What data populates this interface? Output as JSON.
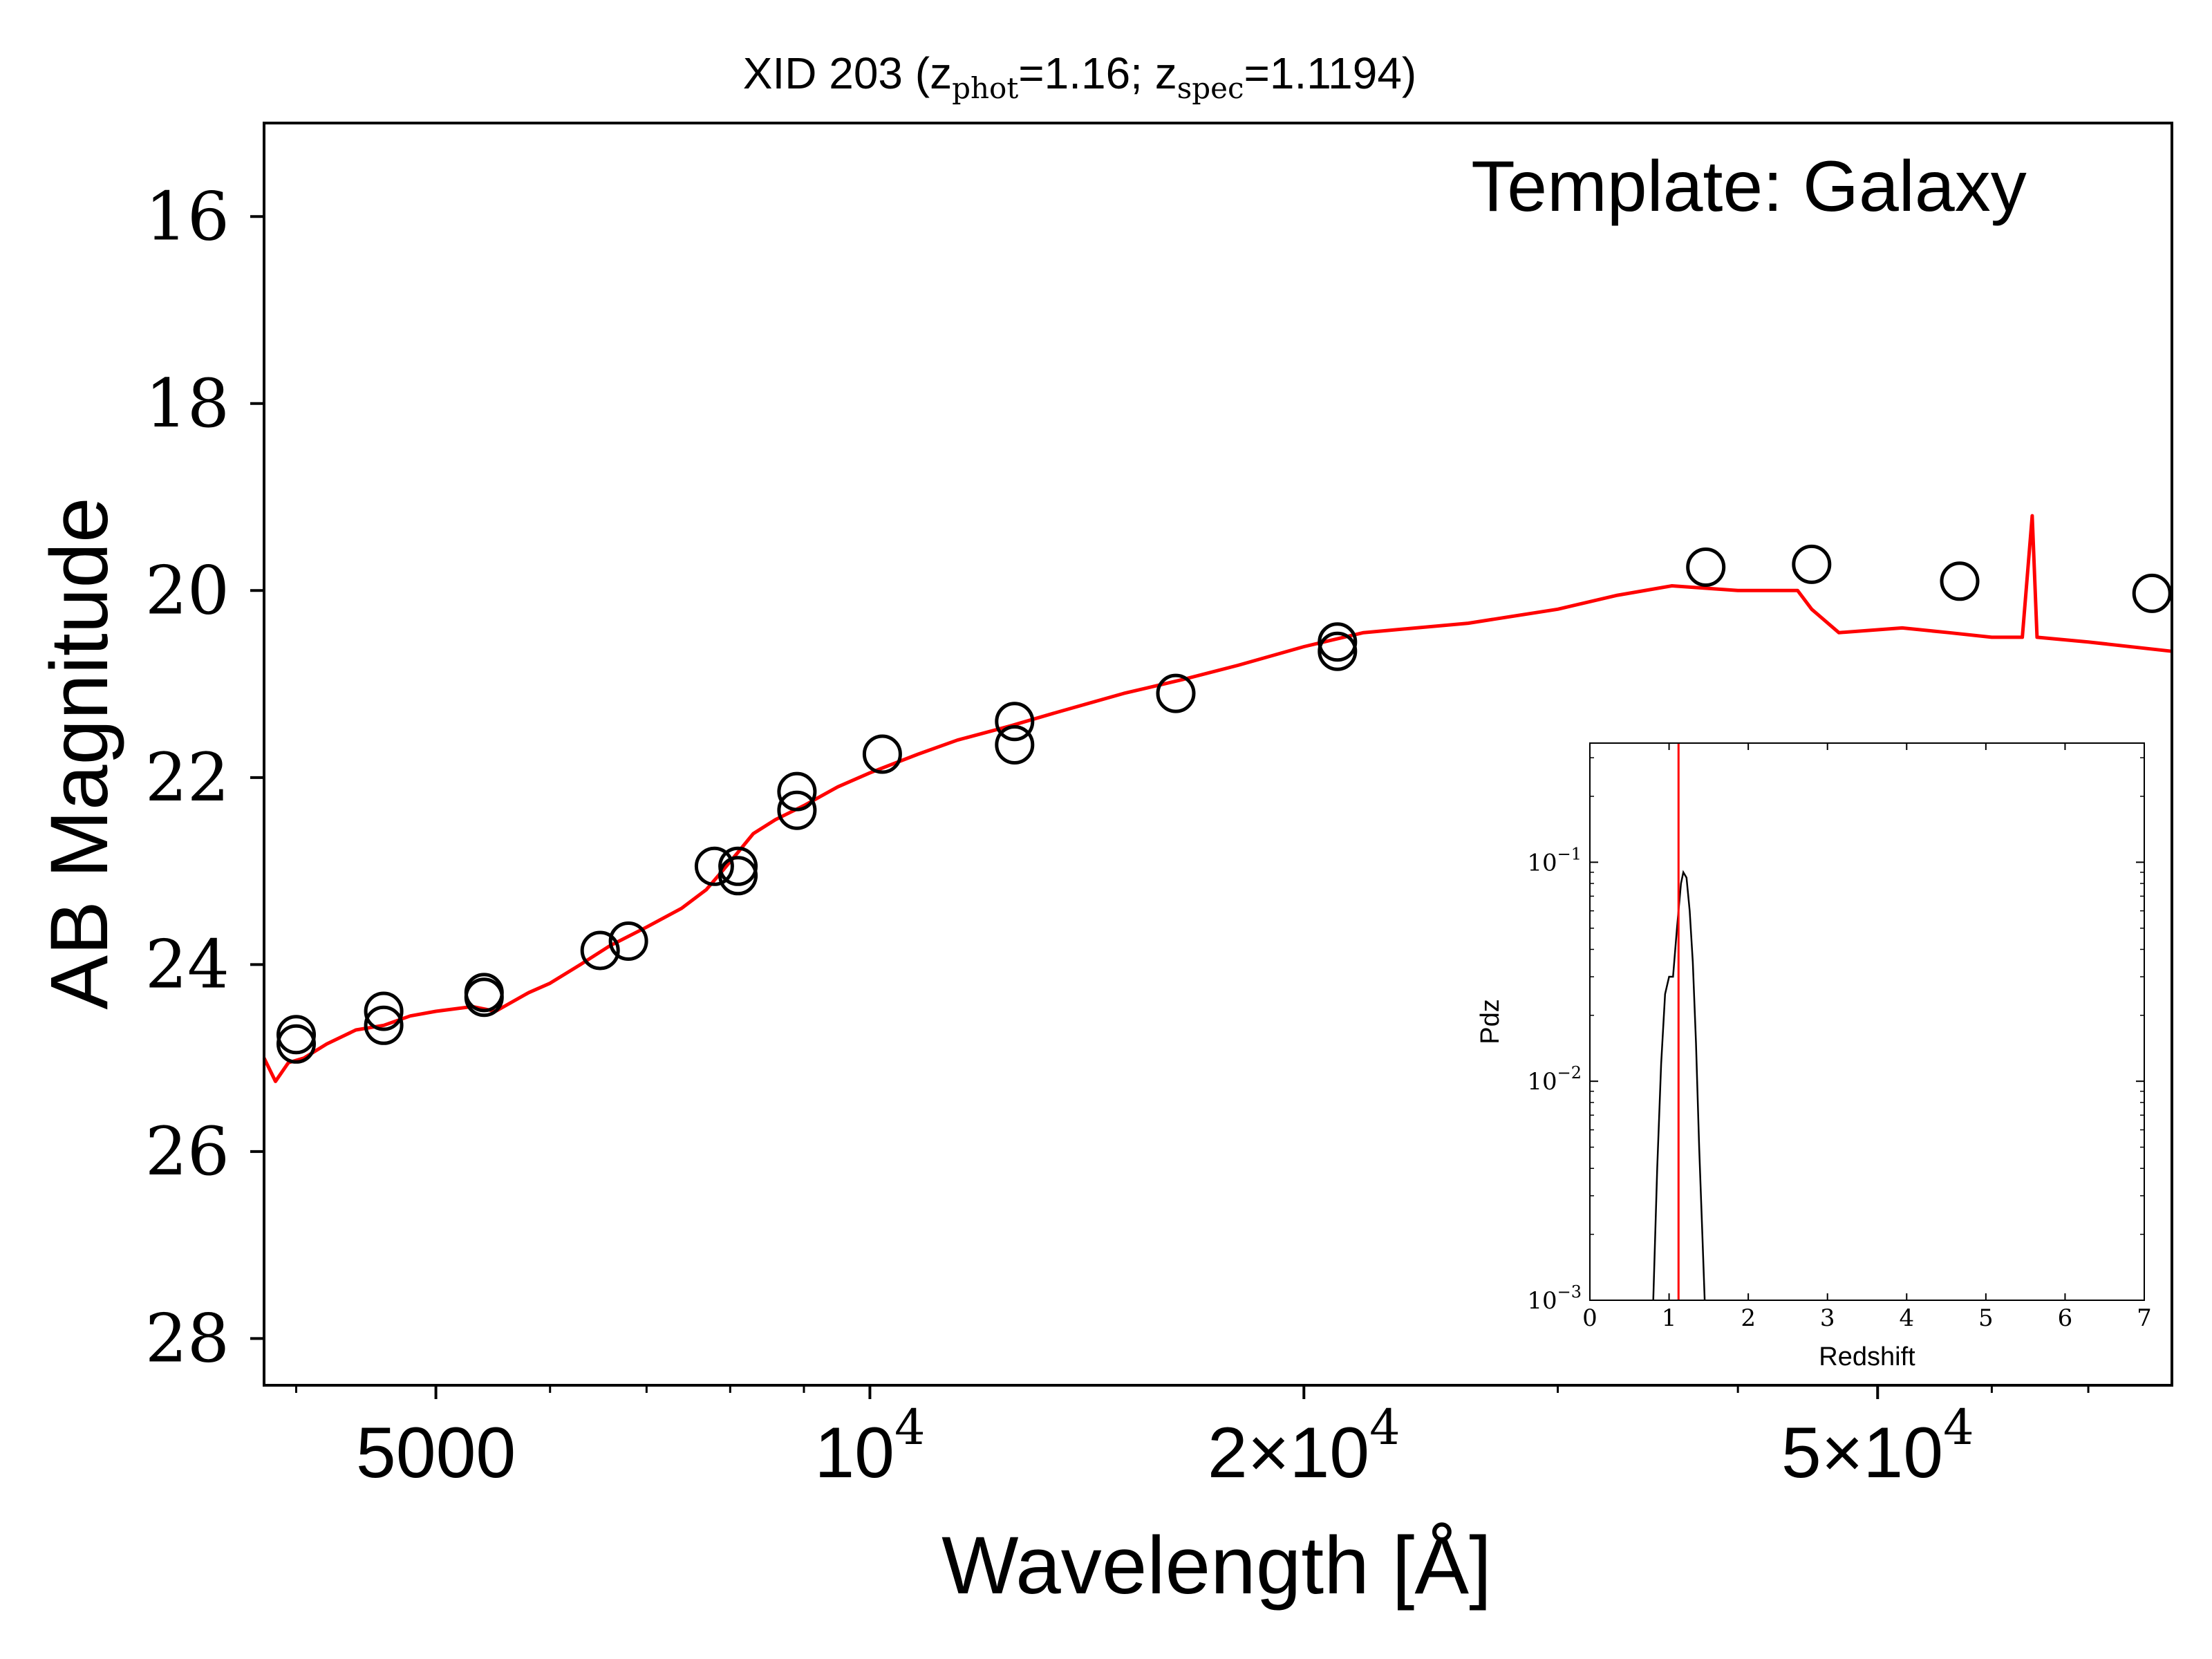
{
  "chart_data": [
    {
      "type": "line",
      "title": {
        "prefix": "XID 203 (z",
        "phot_sub": "phot",
        "phot_val": "=1.16; z",
        "spec_sub": "spec",
        "spec_val": "=1.1194)"
      },
      "template_label": "Template: Galaxy",
      "xlabel": "Wavelength [Å]",
      "ylabel": "AB Magnitude",
      "x_scale": "log",
      "xlim": [
        3800,
        80000
      ],
      "ylim": [
        28.5,
        15.0
      ],
      "y_inverted": true,
      "x_ticks": [
        {
          "value": 5000,
          "label": "5000"
        },
        {
          "value": 10000,
          "label": "10",
          "sup": "4"
        },
        {
          "value": 20000,
          "label": "2×10",
          "sup": "4"
        },
        {
          "value": 50000,
          "label": "5×10",
          "sup": "4"
        }
      ],
      "y_ticks": [
        16,
        18,
        20,
        22,
        24,
        26,
        28
      ],
      "grid": false,
      "colors": {
        "model": "#ff0000",
        "photometry": "#000000"
      },
      "series": [
        {
          "role": "model",
          "points": [
            [
              3800,
              25.0
            ],
            [
              3870,
              25.25
            ],
            [
              3950,
              25.05
            ],
            [
              4050,
              25.0
            ],
            [
              4200,
              24.85
            ],
            [
              4400,
              24.7
            ],
            [
              4600,
              24.65
            ],
            [
              4800,
              24.55
            ],
            [
              5000,
              24.5
            ],
            [
              5300,
              24.45
            ],
            [
              5500,
              24.5
            ],
            [
              5800,
              24.3
            ],
            [
              6000,
              24.2
            ],
            [
              6300,
              24.0
            ],
            [
              6600,
              23.8
            ],
            [
              7000,
              23.6
            ],
            [
              7400,
              23.4
            ],
            [
              7700,
              23.2
            ],
            [
              7900,
              23.0
            ],
            [
              8100,
              22.8
            ],
            [
              8300,
              22.6
            ],
            [
              8600,
              22.45
            ],
            [
              9000,
              22.3
            ],
            [
              9500,
              22.1
            ],
            [
              10000,
              21.95
            ],
            [
              10800,
              21.75
            ],
            [
              11500,
              21.6
            ],
            [
              12500,
              21.45
            ],
            [
              13500,
              21.3
            ],
            [
              15000,
              21.1
            ],
            [
              16500,
              20.95
            ],
            [
              18000,
              20.8
            ],
            [
              20000,
              20.6
            ],
            [
              22000,
              20.45
            ],
            [
              26000,
              20.35
            ],
            [
              30000,
              20.2
            ],
            [
              33000,
              20.05
            ],
            [
              36000,
              19.95
            ],
            [
              40000,
              20.0
            ],
            [
              44000,
              20.0
            ],
            [
              45000,
              20.2
            ],
            [
              47000,
              20.45
            ],
            [
              52000,
              20.4
            ],
            [
              56000,
              20.45
            ],
            [
              60000,
              20.5
            ],
            [
              63000,
              20.5
            ],
            [
              64000,
              19.2
            ],
            [
              64500,
              20.5
            ],
            [
              70000,
              20.55
            ],
            [
              80000,
              20.65
            ]
          ]
        },
        {
          "role": "photometry",
          "points": [
            [
              4000,
              24.75
            ],
            [
              4000,
              24.85
            ],
            [
              4600,
              24.5
            ],
            [
              4600,
              24.65
            ],
            [
              5400,
              24.3
            ],
            [
              5400,
              24.35
            ],
            [
              6500,
              23.85
            ],
            [
              6800,
              23.75
            ],
            [
              7800,
              22.95
            ],
            [
              8100,
              22.95
            ],
            [
              8100,
              23.05
            ],
            [
              8900,
              22.15
            ],
            [
              8900,
              22.35
            ],
            [
              10200,
              21.75
            ],
            [
              12600,
              21.4
            ],
            [
              12600,
              21.65
            ],
            [
              16300,
              21.1
            ],
            [
              21100,
              20.55
            ],
            [
              21100,
              20.65
            ],
            [
              38000,
              19.75
            ],
            [
              45000,
              19.72
            ],
            [
              57000,
              19.9
            ],
            [
              77500,
              20.03
            ]
          ]
        }
      ]
    },
    {
      "type": "line",
      "xlabel": "Redshift",
      "ylabel": "Pdz",
      "xlim": [
        0,
        7
      ],
      "ylim": [
        0.001,
        0.35
      ],
      "y_scale": "log",
      "x_ticks": [
        "0",
        "1",
        "2",
        "3",
        "4",
        "5",
        "6",
        "7"
      ],
      "y_ticks": [
        {
          "value": 0.1,
          "base": "10",
          "exp": "−1"
        },
        {
          "value": 0.01,
          "base": "10",
          "exp": "−2"
        },
        {
          "value": 0.001,
          "base": "10",
          "exp": "−3"
        }
      ],
      "marker_line": {
        "x": 1.1194,
        "color": "#ff0000"
      },
      "series": [
        {
          "role": "pdz",
          "points": [
            [
              0.8,
              0.001
            ],
            [
              0.85,
              0.004
            ],
            [
              0.9,
              0.012
            ],
            [
              0.95,
              0.025
            ],
            [
              1.0,
              0.03
            ],
            [
              1.05,
              0.03
            ],
            [
              1.1,
              0.05
            ],
            [
              1.15,
              0.08
            ],
            [
              1.18,
              0.09
            ],
            [
              1.22,
              0.085
            ],
            [
              1.26,
              0.06
            ],
            [
              1.3,
              0.035
            ],
            [
              1.34,
              0.015
            ],
            [
              1.38,
              0.005
            ],
            [
              1.42,
              0.002
            ],
            [
              1.45,
              0.001
            ]
          ]
        }
      ]
    }
  ]
}
